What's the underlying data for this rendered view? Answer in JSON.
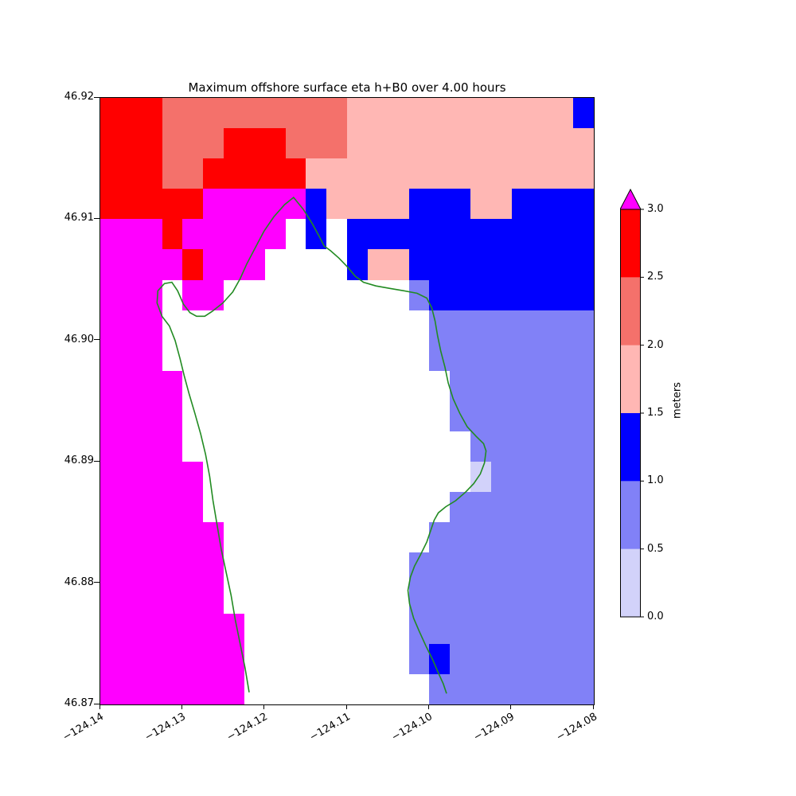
{
  "figure": {
    "title": "Maximum offshore surface eta h+B0 over 4.00 hours"
  },
  "chart_data": {
    "type": "heatmap",
    "title": "Maximum offshore surface eta h+B0 over 4.00 hours",
    "xlabel": "",
    "ylabel": "",
    "xlim": [
      -124.14,
      -124.08
    ],
    "ylim": [
      46.87,
      46.92
    ],
    "grid_on": false,
    "x_ticks": [
      "−124.14",
      "−124.13",
      "−124.12",
      "−124.11",
      "−124.10",
      "−124.09",
      "−124.08"
    ],
    "y_ticks": [
      "46.92",
      "46.91",
      "46.90",
      "46.89",
      "46.88",
      "46.87"
    ],
    "grid_shape": [
      20,
      24
    ],
    "cell_size_deg": 0.0025,
    "value_legend": {
      "M": "eta > 3.0 m",
      "R": "2.5–3.0 m",
      "S": "2.0–2.5 m",
      "K": "1.5–2.0 m",
      "B": "1.0–1.5 m",
      "P": "0.5–1.0 m",
      "L": "0.0–0.5 m",
      ".": "no data / land"
    },
    "color_map": {
      "M": "#ff00ff",
      "R": "#ff0000",
      "S": "#f4716b",
      "K": "#ffb7b4",
      "B": "#0000ff",
      "P": "#8181f7",
      "L": "#d2d2fa",
      ".": "#ffffff"
    },
    "grid_rows": [
      "RRRSSSSSSSSSKKKKKKKKKKKB",
      "RRRSSSRRRSSSKKKKKKKKKKKK",
      "RRRSSRRRRRKKKKKKKKKKKKKK",
      "RRRRRMMMMMBKKKKBBBKKBBBB",
      "MMMRMMMMM.B.BBBBBBBBBBBB",
      "MMMMRMMM....BKKBBBBBBBBB",
      "MMM.MM.........PBBBBBBBB",
      "MMM.............PPPPPPPP",
      "MMM.............PPPPPPPP",
      "MMMM.............PPPPPPP",
      "MMMM.............PPPPPPP",
      "MMMM..............PPPPPP",
      "MMMMM.............LPPPPP",
      "MMMMM............PPPPPPP",
      "MMMMMM..........PPPPPPPP",
      "MMMMMM.........PPPPPPPPP",
      "MMMMMM.........PPPPPPPPP",
      "MMMMMMM........PPPPPPPPP",
      "MMMMMMM........PBPPPPPPP",
      "MMMMMMM.........PPPPPPPP"
    ],
    "colorbar": {
      "label": "meters",
      "ticks_top_to_bottom": [
        "3.0",
        "2.5",
        "2.0",
        "1.5",
        "1.0",
        "0.5",
        "0.0"
      ],
      "segments_top_to_bottom": [
        "#ff0000",
        "#f4716b",
        "#ffb7b4",
        "#0000ff",
        "#8181f7",
        "#d2d2fa"
      ],
      "over_color": "#ff00ff",
      "range": [
        0.0,
        3.0
      ]
    },
    "coastline": {
      "color": "#228b22",
      "points": [
        [
          -124.1219,
          46.871
        ],
        [
          -124.1224,
          46.873
        ],
        [
          -124.123,
          46.875
        ],
        [
          -124.1236,
          46.877
        ],
        [
          -124.1241,
          46.879
        ],
        [
          -124.1247,
          46.8809
        ],
        [
          -124.1253,
          46.8828
        ],
        [
          -124.1258,
          46.8848
        ],
        [
          -124.1263,
          46.8868
        ],
        [
          -124.1267,
          46.8888
        ],
        [
          -124.1272,
          46.8906
        ],
        [
          -124.1278,
          46.8923
        ],
        [
          -124.1285,
          46.894
        ],
        [
          -124.1292,
          46.8956
        ],
        [
          -124.1298,
          46.8971
        ],
        [
          -124.1303,
          46.8985
        ],
        [
          -124.1309,
          46.9
        ],
        [
          -124.1316,
          46.9012
        ],
        [
          -124.1325,
          46.902
        ],
        [
          -124.1331,
          46.9031
        ],
        [
          -124.133,
          46.9041
        ],
        [
          -124.1322,
          46.9047
        ],
        [
          -124.1313,
          46.9048
        ],
        [
          -124.1306,
          46.9041
        ],
        [
          -124.1299,
          46.903
        ],
        [
          -124.1291,
          46.9023
        ],
        [
          -124.1283,
          46.902
        ],
        [
          -124.1273,
          46.902
        ],
        [
          -124.1264,
          46.9024
        ],
        [
          -124.1251,
          46.9031
        ],
        [
          -124.1239,
          46.904
        ],
        [
          -124.123,
          46.9051
        ],
        [
          -124.1222,
          46.9063
        ],
        [
          -124.1212,
          46.9076
        ],
        [
          -124.1201,
          46.909
        ],
        [
          -124.1189,
          46.9102
        ],
        [
          -124.1176,
          46.9112
        ],
        [
          -124.1165,
          46.9118
        ],
        [
          -124.1153,
          46.9108
        ],
        [
          -124.1142,
          46.9096
        ],
        [
          -124.1134,
          46.9086
        ],
        [
          -124.1128,
          46.9078
        ],
        [
          -124.112,
          46.9074
        ],
        [
          -124.111,
          46.9068
        ],
        [
          -124.11,
          46.9061
        ],
        [
          -124.109,
          46.9053
        ],
        [
          -124.108,
          46.9048
        ],
        [
          -124.1065,
          46.9045
        ],
        [
          -124.1048,
          46.9043
        ],
        [
          -124.1031,
          46.9041
        ],
        [
          -124.1015,
          46.9039
        ],
        [
          -124.1003,
          46.9035
        ],
        [
          -124.0997,
          46.9027
        ],
        [
          -124.0993,
          46.9016
        ],
        [
          -124.099,
          46.9004
        ],
        [
          -124.0986,
          46.8991
        ],
        [
          -124.0981,
          46.8978
        ],
        [
          -124.0977,
          46.8965
        ],
        [
          -124.0971,
          46.8952
        ],
        [
          -124.0963,
          46.894
        ],
        [
          -124.0954,
          46.8929
        ],
        [
          -124.0943,
          46.8921
        ],
        [
          -124.0934,
          46.8915
        ],
        [
          -124.0931,
          46.8909
        ],
        [
          -124.0933,
          46.8899
        ],
        [
          -124.0938,
          46.889
        ],
        [
          -124.0946,
          46.8882
        ],
        [
          -124.0956,
          46.8875
        ],
        [
          -124.0968,
          46.8868
        ],
        [
          -124.098,
          46.8863
        ],
        [
          -124.0989,
          46.8858
        ],
        [
          -124.0994,
          46.8852
        ],
        [
          -124.0998,
          46.8844
        ],
        [
          -124.1003,
          46.8834
        ],
        [
          -124.1011,
          46.8823
        ],
        [
          -124.1018,
          46.8814
        ],
        [
          -124.1023,
          46.8805
        ],
        [
          -124.1026,
          46.8794
        ],
        [
          -124.1024,
          46.8783
        ],
        [
          -124.1019,
          46.8771
        ],
        [
          -124.1012,
          46.876
        ],
        [
          -124.1004,
          46.8748
        ],
        [
          -124.0996,
          46.8737
        ],
        [
          -124.0989,
          46.8726
        ],
        [
          -124.0983,
          46.8717
        ],
        [
          -124.0979,
          46.8709
        ]
      ]
    }
  }
}
